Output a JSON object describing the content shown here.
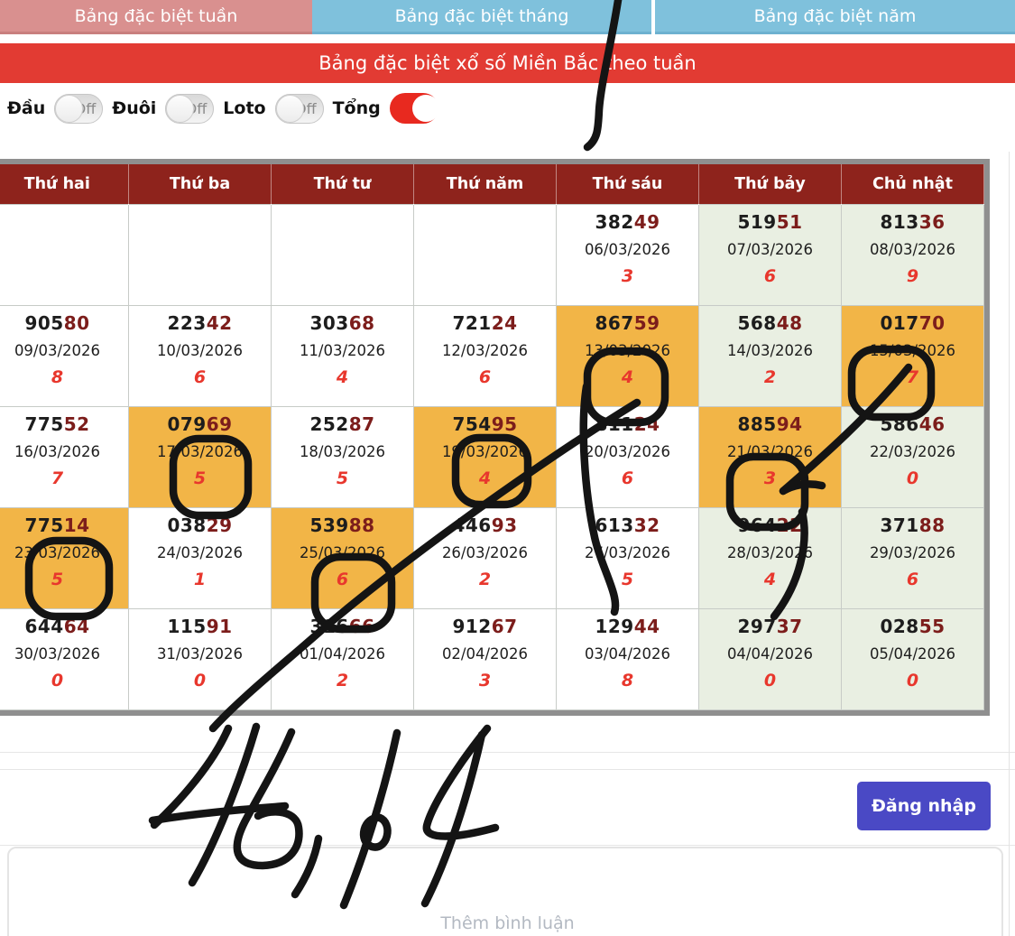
{
  "tabs": [
    {
      "label": "Bảng đặc biệt tuần",
      "active": true
    },
    {
      "label": "Bảng đặc biệt tháng",
      "active": false
    },
    {
      "label": "Bảng đặc biệt năm",
      "active": false
    }
  ],
  "banner": {
    "title": "Bảng đặc biệt xổ số Miền Bắc theo tuần"
  },
  "filters": [
    {
      "label": "Đầu",
      "state": "Off"
    },
    {
      "label": "Đuôi",
      "state": "Off"
    },
    {
      "label": "Loto",
      "state": "Off"
    },
    {
      "label": "Tổng",
      "state": "On"
    }
  ],
  "table": {
    "headers": [
      "Thứ hai",
      "Thứ ba",
      "Thứ tư",
      "Thứ năm",
      "Thứ sáu",
      "Thứ bảy",
      "Chủ nhật"
    ],
    "rows": [
      [
        null,
        null,
        null,
        null,
        {
          "number_black": "382",
          "number_red": "49",
          "date": "06/03/2026",
          "total": "3",
          "bg": "w"
        },
        {
          "number_black": "519",
          "number_red": "51",
          "date": "07/03/2026",
          "total": "6",
          "bg": "g"
        },
        {
          "number_black": "813",
          "number_red": "36",
          "date": "08/03/2026",
          "total": "9",
          "bg": "g"
        }
      ],
      [
        {
          "number_black": "905",
          "number_red": "80",
          "date": "09/03/2026",
          "total": "8",
          "bg": "w"
        },
        {
          "number_black": "223",
          "number_red": "42",
          "date": "10/03/2026",
          "total": "6",
          "bg": "w"
        },
        {
          "number_black": "303",
          "number_red": "68",
          "date": "11/03/2026",
          "total": "4",
          "bg": "w"
        },
        {
          "number_black": "721",
          "number_red": "24",
          "date": "12/03/2026",
          "total": "6",
          "bg": "w"
        },
        {
          "number_black": "867",
          "number_red": "59",
          "date": "13/03/2026",
          "total": "4",
          "bg": "o"
        },
        {
          "number_black": "568",
          "number_red": "48",
          "date": "14/03/2026",
          "total": "2",
          "bg": "g"
        },
        {
          "number_black": "017",
          "number_red": "70",
          "date": "15/03/2026",
          "total": "7",
          "bg": "o"
        }
      ],
      [
        {
          "number_black": "775",
          "number_red": "52",
          "date": "16/03/2026",
          "total": "7",
          "bg": "w"
        },
        {
          "number_black": "079",
          "number_red": "69",
          "date": "17/03/2026",
          "total": "5",
          "bg": "o"
        },
        {
          "number_black": "252",
          "number_red": "87",
          "date": "18/03/2026",
          "total": "5",
          "bg": "w"
        },
        {
          "number_black": "754",
          "number_red": "95",
          "date": "19/03/2026",
          "total": "4",
          "bg": "o"
        },
        {
          "number_black": "811",
          "number_red": "24",
          "date": "20/03/2026",
          "total": "6",
          "bg": "w"
        },
        {
          "number_black": "885",
          "number_red": "94",
          "date": "21/03/2026",
          "total": "3",
          "bg": "o"
        },
        {
          "number_black": "586",
          "number_red": "46",
          "date": "22/03/2026",
          "total": "0",
          "bg": "g"
        }
      ],
      [
        {
          "number_black": "775",
          "number_red": "14",
          "date": "23/03/2026",
          "total": "5",
          "bg": "o"
        },
        {
          "number_black": "038",
          "number_red": "29",
          "date": "24/03/2026",
          "total": "1",
          "bg": "w"
        },
        {
          "number_black": "539",
          "number_red": "88",
          "date": "25/03/2026",
          "total": "6",
          "bg": "o"
        },
        {
          "number_black": "446",
          "number_red": "93",
          "date": "26/03/2026",
          "total": "2",
          "bg": "w"
        },
        {
          "number_black": "613",
          "number_red": "32",
          "date": "27/03/2026",
          "total": "5",
          "bg": "w"
        },
        {
          "number_black": "964",
          "number_red": "22",
          "date": "28/03/2026",
          "total": "4",
          "bg": "g"
        },
        {
          "number_black": "371",
          "number_red": "88",
          "date": "29/03/2026",
          "total": "6",
          "bg": "g"
        }
      ],
      [
        {
          "number_black": "644",
          "number_red": "64",
          "date": "30/03/2026",
          "total": "0",
          "bg": "w"
        },
        {
          "number_black": "115",
          "number_red": "91",
          "date": "31/03/2026",
          "total": "0",
          "bg": "w"
        },
        {
          "number_black": "316",
          "number_red": "66",
          "date": "01/04/2026",
          "total": "2",
          "bg": "w"
        },
        {
          "number_black": "912",
          "number_red": "67",
          "date": "02/04/2026",
          "total": "3",
          "bg": "w"
        },
        {
          "number_black": "129",
          "number_red": "44",
          "date": "03/04/2026",
          "total": "8",
          "bg": "w"
        },
        {
          "number_black": "297",
          "number_red": "37",
          "date": "04/04/2026",
          "total": "0",
          "bg": "g"
        },
        {
          "number_black": "028",
          "number_red": "55",
          "date": "05/04/2026",
          "total": "0",
          "bg": "g"
        }
      ]
    ]
  },
  "login_button": "Đăng nhập",
  "comment_placeholder": "Thêm bình luận",
  "annotations": {
    "handwritten_note": "46, 14",
    "circled_total_dates": [
      "13/03/2026",
      "15/03/2026",
      "17/03/2026",
      "19/03/2026",
      "21/03/2026",
      "23/03/2026",
      "25/03/2026"
    ]
  },
  "colors": {
    "accent_red": "#e23b33",
    "header_maroon": "#8e231c",
    "tab_active": "#d9908f",
    "tab_inactive": "#7fc1dc",
    "cell_orange": "#f2b547",
    "cell_green": "#e9efe2",
    "digit_maroon": "#7c1d1b",
    "digit_red": "#e8372d",
    "login_blue": "#4a49c5",
    "toggle_on": "#e8291f"
  }
}
